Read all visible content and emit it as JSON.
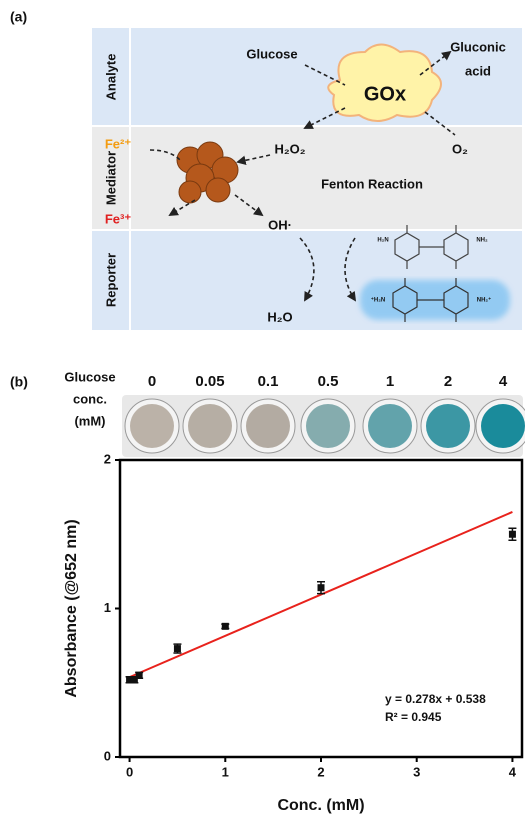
{
  "panel_a": {
    "label": "(a)",
    "rows": [
      "Analyte",
      "Mediator",
      "Reporter"
    ],
    "glucose": "Glucose",
    "gluconic_acid": [
      "Gluconic",
      "acid"
    ],
    "enzyme": "GOx",
    "h2o2": "H₂O₂",
    "o2": "O₂",
    "fe2": "Fe²⁺",
    "fe3": "Fe³⁺",
    "oh": "OH·",
    "fenton": "Fenton Reaction",
    "h2o": "H₂O",
    "mol_labels": [
      "H₂N",
      "NH₂",
      "⁺H₂N",
      "NH₂⁺"
    ]
  },
  "panel_b": {
    "label": "(b)",
    "conc_title": [
      "Glucose",
      "conc.",
      "(mM)"
    ],
    "conc_labels": [
      "0",
      "0.05",
      "0.1",
      "0.5",
      "1",
      "2",
      "4"
    ]
  },
  "chart_data": {
    "type": "scatter",
    "x_label": "Conc. (mM)",
    "y_label": "Absorbance (@652 nm)",
    "x": [
      0,
      0.05,
      0.1,
      0.5,
      1,
      2,
      4
    ],
    "values": [
      0.52,
      0.52,
      0.55,
      0.73,
      0.88,
      1.14,
      1.5
    ],
    "errors": [
      0.02,
      0.02,
      0.02,
      0.03,
      0.015,
      0.04,
      0.04
    ],
    "color": "#111111",
    "fit": {
      "x": [
        0,
        4
      ],
      "values": [
        0.538,
        1.65
      ],
      "color": "#e8221c"
    },
    "annotations": [
      "y = 0.278x + 0.538",
      "R² = 0.945"
    ],
    "xlim": [
      -0.1,
      4.1
    ],
    "ylim": [
      0,
      2
    ],
    "xticks": [
      0,
      1,
      2,
      3,
      4
    ],
    "yticks": [
      0,
      1,
      2
    ]
  }
}
